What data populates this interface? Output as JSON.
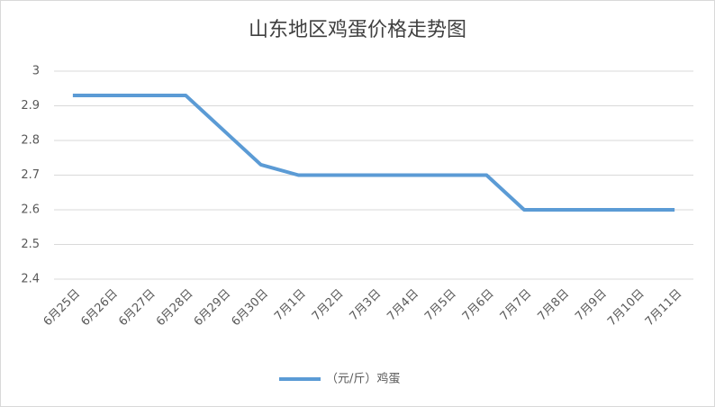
{
  "chart_data": {
    "type": "line",
    "title": "山东地区鸡蛋价格走势图",
    "categories": [
      "6月25日",
      "6月26日",
      "6月27日",
      "6月28日",
      "6月29日",
      "6月30日",
      "7月1日",
      "7月2日",
      "7月3日",
      "7月4日",
      "7月5日",
      "7月6日",
      "7月7日",
      "7月8日",
      "7月9日",
      "7月10日",
      "7月11日"
    ],
    "series": [
      {
        "name": "（元/斤）鸡蛋",
        "color": "#5b9bd5",
        "values": [
          2.93,
          2.93,
          2.93,
          2.93,
          2.83,
          2.73,
          2.7,
          2.7,
          2.7,
          2.7,
          2.7,
          2.7,
          2.6,
          2.6,
          2.6,
          2.6,
          2.6
        ]
      }
    ],
    "ylim": [
      2.4,
      3
    ],
    "yticks": [
      2.4,
      2.5,
      2.6,
      2.7,
      2.8,
      2.9,
      3
    ],
    "grid": true,
    "legend": "bottom"
  }
}
